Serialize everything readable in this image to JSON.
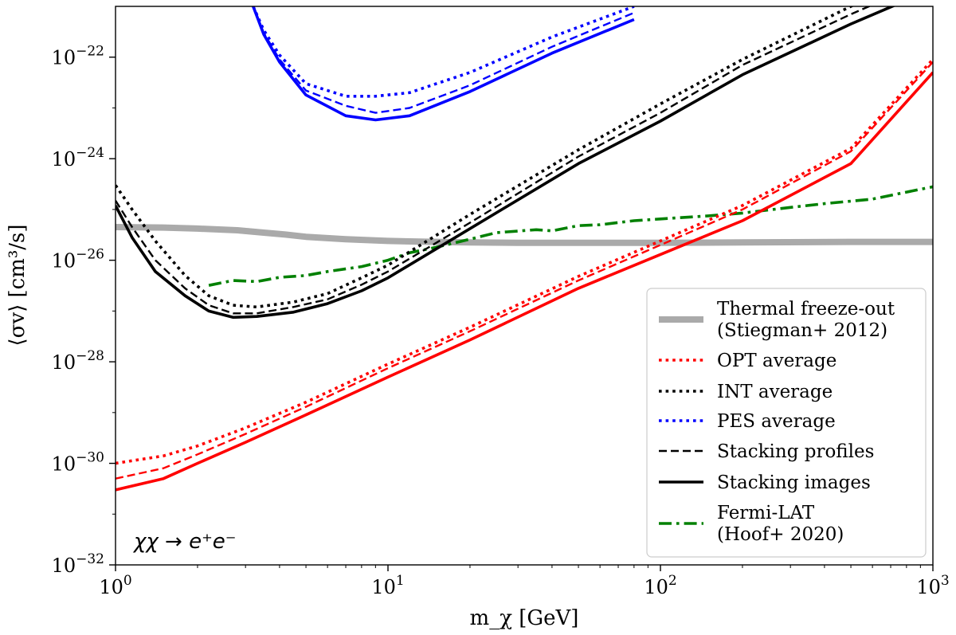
{
  "chart_data": {
    "type": "line",
    "xscale": "log",
    "yscale": "log",
    "xlim": [
      1,
      1000
    ],
    "ylim": [
      1e-32,
      1e-21
    ],
    "xlabel": "m_χ [GeV]",
    "ylabel": "⟨σv⟩ [cm³/s]",
    "xticks": [
      {
        "value": 1,
        "base": "10",
        "exp": "0"
      },
      {
        "value": 10,
        "base": "10",
        "exp": "1"
      },
      {
        "value": 100,
        "base": "10",
        "exp": "2"
      },
      {
        "value": 1000,
        "base": "10",
        "exp": "3"
      }
    ],
    "yticks": [
      {
        "value": 1e-32,
        "base": "10",
        "exp": "−32"
      },
      {
        "value": 1e-30,
        "base": "10",
        "exp": "−30"
      },
      {
        "value": 1e-28,
        "base": "10",
        "exp": "−28"
      },
      {
        "value": 1e-26,
        "base": "10",
        "exp": "−26"
      },
      {
        "value": 1e-24,
        "base": "10",
        "exp": "−24"
      },
      {
        "value": 1e-22,
        "base": "10",
        "exp": "−22"
      }
    ],
    "annotation": "χχ → e⁺e⁻",
    "legend_position": "lower right",
    "legend": [
      {
        "label": "Thermal freeze-out",
        "label2": "(Stiegman+ 2012)",
        "color": "#aaaaaa",
        "style": "thick"
      },
      {
        "label": "OPT average",
        "color": "#ff0000",
        "style": "dotted"
      },
      {
        "label": "INT average",
        "color": "#000000",
        "style": "dotted"
      },
      {
        "label": "PES average",
        "color": "#0000ff",
        "style": "dotted"
      },
      {
        "label": "Stacking profiles",
        "color": "#000000",
        "style": "dashed"
      },
      {
        "label": "Stacking images",
        "color": "#000000",
        "style": "solid"
      },
      {
        "label": "Fermi-LAT",
        "label2": "(Hoof+ 2020)",
        "color": "#008000",
        "style": "dashdot"
      }
    ],
    "series": [
      {
        "name": "Thermal freeze-out",
        "color": "#aaaaaa",
        "style": "thick",
        "x": [
          1,
          1.5,
          2,
          2.8,
          3.5,
          4.2,
          5,
          7,
          10,
          15,
          20,
          30,
          50,
          100,
          200,
          500,
          1000
        ],
        "y": [
          4.5e-26,
          4.4e-26,
          4.2e-26,
          3.9e-26,
          3.5e-26,
          3.2e-26,
          2.9e-26,
          2.6e-26,
          2.4e-26,
          2.3e-26,
          2.25e-26,
          2.2e-26,
          2.2e-26,
          2.2e-26,
          2.25e-26,
          2.3e-26,
          2.3e-26
        ]
      },
      {
        "name": "Fermi-LAT",
        "color": "#008000",
        "style": "dashdot",
        "x": [
          2.2,
          2.7,
          3.3,
          4,
          5,
          6,
          8,
          10,
          12,
          15,
          20,
          25,
          35,
          40,
          50,
          60,
          80,
          100,
          150,
          200,
          300,
          400,
          600,
          800,
          1000
        ],
        "y": [
          3.2e-27,
          4e-27,
          3.8e-27,
          4.6e-27,
          5e-27,
          6e-27,
          7.5e-27,
          1e-26,
          1.4e-26,
          1.8e-26,
          2.6e-26,
          3.5e-26,
          4e-26,
          3.8e-26,
          4.8e-26,
          5e-26,
          6e-26,
          6.5e-26,
          7.5e-26,
          8.5e-26,
          1.1e-25,
          1.3e-25,
          1.6e-25,
          2.2e-25,
          2.8e-25
        ]
      },
      {
        "name": "OPT average",
        "color": "#ff0000",
        "style": "dotted",
        "x": [
          1,
          1.5,
          2,
          3,
          5,
          10,
          20,
          50,
          100,
          200,
          500,
          1000
        ],
        "y": [
          1e-30,
          1.4e-30,
          2.2e-30,
          5e-30,
          1.6e-29,
          9e-29,
          4.8e-28,
          4.8e-27,
          2.4e-26,
          1.2e-25,
          1.6e-24,
          9e-23
        ]
      },
      {
        "name": "OPT stacking profiles",
        "color": "#ff0000",
        "style": "dashed",
        "x": [
          1,
          1.5,
          2,
          3,
          5,
          10,
          20,
          50,
          100,
          200,
          500,
          1000
        ],
        "y": [
          5e-31,
          8e-31,
          1.5e-30,
          3.8e-30,
          1.3e-29,
          7.5e-29,
          4e-28,
          4e-27,
          2e-26,
          1e-25,
          1.4e-24,
          8e-23
        ]
      },
      {
        "name": "OPT stacking images",
        "color": "#ff0000",
        "style": "solid",
        "x": [
          1,
          1.5,
          2,
          3,
          5,
          10,
          20,
          50,
          100,
          200,
          500,
          1000
        ],
        "y": [
          3e-31,
          5e-31,
          1e-30,
          2.6e-30,
          9e-30,
          5e-29,
          2.7e-28,
          2.8e-27,
          1.3e-26,
          6e-26,
          8e-25,
          5e-23
        ]
      },
      {
        "name": "INT average",
        "color": "#000000",
        "style": "dotted",
        "x": [
          1,
          1.15,
          1.4,
          1.8,
          2.2,
          2.7,
          3.3,
          4.5,
          6,
          8,
          10,
          20,
          50,
          100,
          200,
          500,
          1000
        ],
        "y": [
          3e-25,
          1e-25,
          2.4e-26,
          5e-27,
          2e-27,
          1.3e-27,
          1.2e-27,
          1.5e-27,
          2.2e-27,
          4.5e-27,
          8e-27,
          8e-26,
          1.5e-24,
          1.2e-23,
          9e-23,
          1e-21,
          5e-21
        ]
      },
      {
        "name": "INT stacking profiles",
        "color": "#000000",
        "style": "dashed",
        "x": [
          1,
          1.15,
          1.4,
          1.8,
          2.2,
          2.7,
          3.3,
          4.5,
          6,
          8,
          10,
          20,
          50,
          100,
          200,
          500,
          1000
        ],
        "y": [
          1.5e-25,
          4.5e-26,
          1e-26,
          2.8e-27,
          1.3e-27,
          9e-28,
          9e-28,
          1.2e-27,
          1.7e-27,
          3.3e-27,
          6e-27,
          5.5e-26,
          1.1e-24,
          8e-24,
          7e-23,
          7e-22,
          3.5e-21
        ]
      },
      {
        "name": "INT stacking images",
        "color": "#000000",
        "style": "solid",
        "x": [
          1,
          1.15,
          1.4,
          1.8,
          2.2,
          2.7,
          3.3,
          4.5,
          6,
          8,
          10,
          20,
          50,
          100,
          200,
          500,
          1000
        ],
        "y": [
          1.2e-25,
          2.8e-26,
          6e-27,
          2e-27,
          1e-27,
          7.5e-28,
          7.8e-28,
          9.5e-28,
          1.4e-27,
          2.5e-27,
          4.5e-27,
          4.2e-26,
          8e-25,
          5.5e-24,
          4.5e-23,
          4.5e-22,
          2.2e-21
        ]
      },
      {
        "name": "PES average",
        "color": "#0000ff",
        "style": "dotted",
        "x": [
          3.2,
          3.5,
          4,
          5,
          7,
          9,
          12,
          20,
          40,
          80
        ],
        "y": [
          1e-21,
          3.4e-22,
          1.1e-22,
          3e-23,
          1.7e-23,
          1.7e-23,
          2e-23,
          5e-23,
          2.5e-22,
          1e-21
        ]
      },
      {
        "name": "PES stacking profiles",
        "color": "#0000ff",
        "style": "dashed",
        "x": [
          3.2,
          3.5,
          4,
          5,
          7,
          9,
          12,
          20,
          40,
          80
        ],
        "y": [
          1e-21,
          3e-22,
          9e-23,
          2.2e-23,
          1.1e-23,
          8e-24,
          1e-23,
          2.8e-23,
          1.6e-22,
          7.5e-22
        ]
      },
      {
        "name": "PES stacking images",
        "color": "#0000ff",
        "style": "solid",
        "x": [
          3.2,
          3.5,
          4,
          5,
          7,
          9,
          12,
          20,
          40,
          80
        ],
        "y": [
          1e-21,
          2.8e-22,
          8e-23,
          1.8e-23,
          7e-24,
          5.8e-24,
          7e-24,
          2.1e-23,
          1.2e-22,
          5.5e-22
        ]
      }
    ]
  }
}
